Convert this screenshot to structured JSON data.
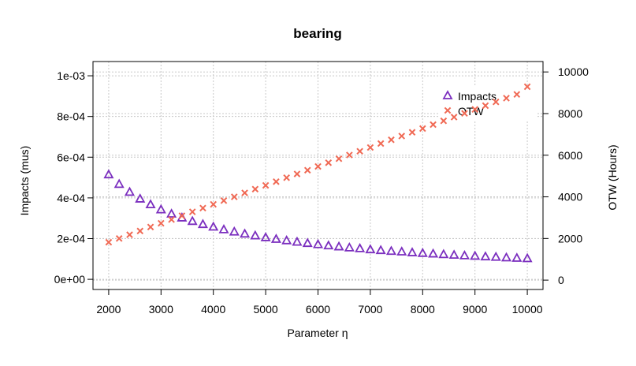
{
  "chart_data": {
    "type": "scatter",
    "title": "bearing",
    "xlabel": "Parameter η",
    "ylabel_left": "Impacts (mus)",
    "ylabel_right": "OTW (Hours)",
    "x_ticks": [
      2000,
      3000,
      4000,
      5000,
      6000,
      7000,
      8000,
      9000,
      10000
    ],
    "x_tick_labels": [
      "2000",
      "3000",
      "4000",
      "5000",
      "6000",
      "7000",
      "8000",
      "9000",
      "10000"
    ],
    "y_left_ticks": [
      0,
      0.0002,
      0.0004,
      0.0006,
      0.0008,
      0.001
    ],
    "y_left_tick_labels": [
      "0e+00",
      "2e-04",
      "4e-04",
      "6e-04",
      "8e-04",
      "1e-03"
    ],
    "y_right_ticks": [
      0,
      2000,
      4000,
      6000,
      8000,
      10000
    ],
    "y_right_tick_labels": [
      "0",
      "2000",
      "4000",
      "6000",
      "8000",
      "10000"
    ],
    "xlim": [
      1700,
      10300
    ],
    "ylim_left": [
      -5e-05,
      0.00107
    ],
    "ylim_right": [
      -450,
      10500
    ],
    "grid": true,
    "legend_position": "top-right",
    "x": [
      2000,
      2200,
      2400,
      2600,
      2800,
      3000,
      3200,
      3400,
      3600,
      3800,
      4000,
      4200,
      4400,
      4600,
      4800,
      5000,
      5200,
      5400,
      5600,
      5800,
      6000,
      6200,
      6400,
      6600,
      6800,
      7000,
      7200,
      7400,
      7600,
      7800,
      8000,
      8200,
      8400,
      8600,
      8800,
      9000,
      9200,
      9400,
      9600,
      9800,
      10000
    ],
    "series": [
      {
        "name": "Impacts",
        "axis": "left",
        "marker": "triangle",
        "color": "#7b2fbf",
        "values": [
          0.000515,
          0.000468,
          0.000429,
          0.000396,
          0.000368,
          0.000343,
          0.000322,
          0.000303,
          0.000286,
          0.000271,
          0.000258,
          0.000245,
          0.000234,
          0.000224,
          0.000215,
          0.000206,
          0.000198,
          0.000191,
          0.000184,
          0.000178,
          0.000172,
          0.000166,
          0.000161,
          0.000156,
          0.000152,
          0.000147,
          0.000143,
          0.000139,
          0.000136,
          0.000132,
          0.000129,
          0.000126,
          0.000123,
          0.00012,
          0.000117,
          0.000115,
          0.000112,
          0.00011,
          0.000107,
          0.000105,
          0.000103
        ]
      },
      {
        "name": "OTW",
        "axis": "right",
        "marker": "cross",
        "color": "#f06a55",
        "values": [
          1820,
          2000,
          2180,
          2360,
          2550,
          2730,
          2910,
          3090,
          3280,
          3460,
          3640,
          3820,
          4000,
          4190,
          4370,
          4550,
          4730,
          4920,
          5100,
          5280,
          5460,
          5640,
          5830,
          6010,
          6190,
          6370,
          6560,
          6740,
          6920,
          7100,
          7280,
          7470,
          7650,
          7830,
          8010,
          8200,
          8380,
          8560,
          8740,
          8920,
          9290
        ]
      }
    ]
  }
}
